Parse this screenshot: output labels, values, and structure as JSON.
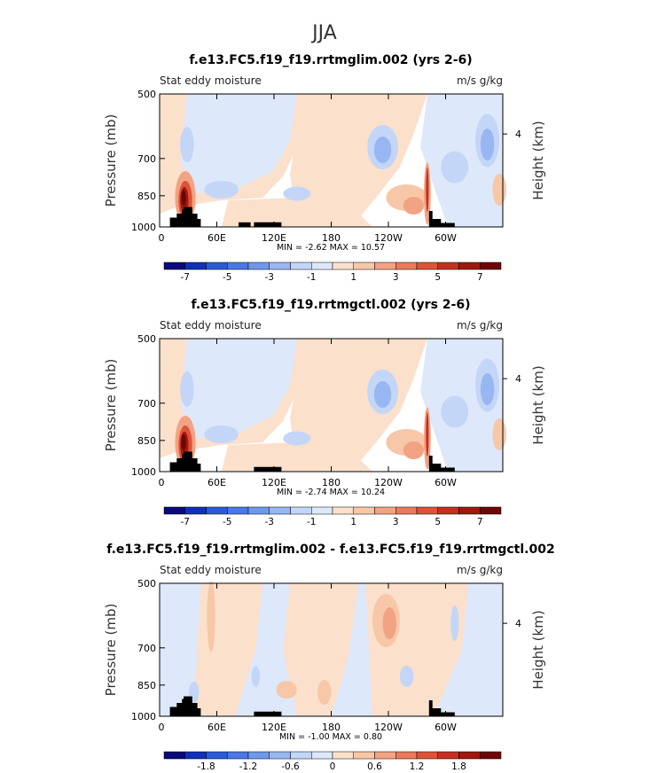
{
  "page_title": "JJA",
  "colors": {
    "neg": [
      "#0a0a7a",
      "#1030b8",
      "#2a5ad8",
      "#4a78e4",
      "#6f97ec",
      "#98b6f2",
      "#c3d6f7",
      "#dde8fa"
    ],
    "pos": [
      "#fbe0cc",
      "#f7c7a8",
      "#f2a383",
      "#e97a5c",
      "#dd5337",
      "#c4301f",
      "#a0180f",
      "#6d0606"
    ],
    "terrain": "#000000"
  },
  "chart_data": [
    {
      "type": "heatmap",
      "title": "f.e13.FC5.f19_f19.rrtmglim.002 (yrs 2-6)",
      "variable_label": "Stat eddy moisture",
      "units_label": "m/s g/kg",
      "ylabel": "Pressure (mb)",
      "ylabel_right": "Height (km)",
      "y_ticks": [
        "500",
        "700",
        "850",
        "1000"
      ],
      "y_right_ticks": [
        "4"
      ],
      "x_ticks": [
        "0",
        "60E",
        "120E",
        "180",
        "120W",
        "60W"
      ],
      "stats": "MIN =   -2.62   MAX =   10.57",
      "colorbar_labels": [
        "-7",
        "-5",
        "-3",
        "-1",
        "1",
        "3",
        "5",
        "7"
      ],
      "colorbar_bins": 16
    },
    {
      "type": "heatmap",
      "title": "f.e13.FC5.f19_f19.rrtmgctl.002 (yrs 2-6)",
      "variable_label": "Stat eddy moisture",
      "units_label": "m/s g/kg",
      "ylabel": "Pressure (mb)",
      "ylabel_right": "Height (km)",
      "y_ticks": [
        "500",
        "700",
        "850",
        "1000"
      ],
      "y_right_ticks": [
        "4"
      ],
      "x_ticks": [
        "0",
        "60E",
        "120E",
        "180",
        "120W",
        "60W"
      ],
      "stats": "MIN =   -2.74   MAX =   10.24",
      "colorbar_labels": [
        "-7",
        "-5",
        "-3",
        "-1",
        "1",
        "3",
        "5",
        "7"
      ],
      "colorbar_bins": 16
    },
    {
      "type": "heatmap",
      "title": "f.e13.FC5.f19_f19.rrtmglim.002 - f.e13.FC5.f19_f19.rrtmgctl.002",
      "variable_label": "Stat eddy moisture",
      "units_label": "m/s g/kg",
      "ylabel": "Pressure (mb)",
      "ylabel_right": "Height (km)",
      "y_ticks": [
        "500",
        "700",
        "850",
        "1000"
      ],
      "y_right_ticks": [
        "4"
      ],
      "x_ticks": [
        "0",
        "60E",
        "120E",
        "180",
        "120W",
        "60W"
      ],
      "stats": "MIN =   -1.00   MAX =   0.80",
      "colorbar_labels": [
        "-1.8",
        "-1.2",
        "-0.6",
        "0",
        "0.6",
        "1.2",
        "1.8"
      ],
      "colorbar_bins": 16
    }
  ]
}
